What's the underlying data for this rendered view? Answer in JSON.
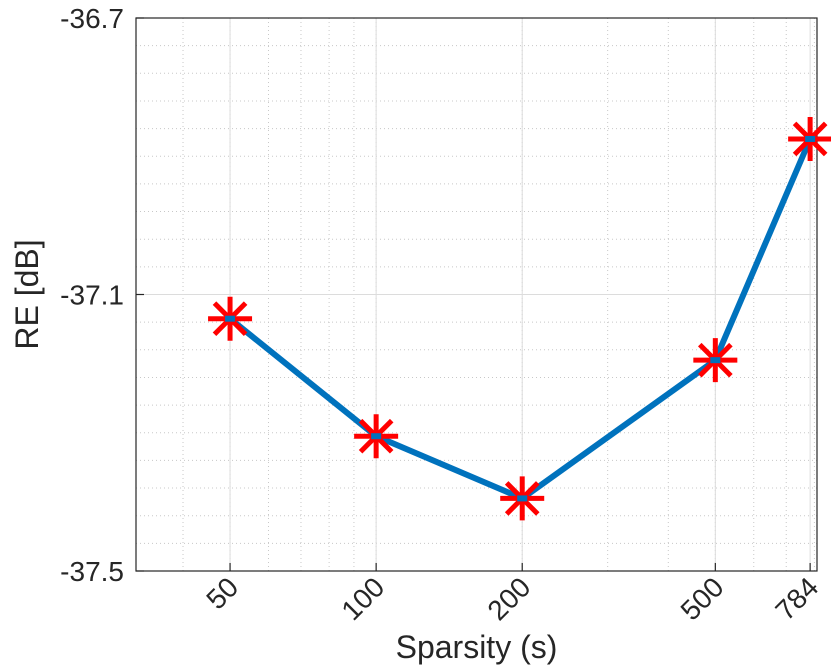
{
  "chart_data": {
    "type": "line",
    "xlabel": "Sparsity (s)",
    "ylabel": "RE [dB]",
    "x_scale": "log",
    "xlim": [
      32,
      810
    ],
    "ylim": [
      -37.5,
      -36.7
    ],
    "x_ticks": [
      50,
      100,
      200,
      500,
      784
    ],
    "x_tick_labels": [
      "50",
      "100",
      "200",
      "500",
      "784"
    ],
    "y_ticks": [
      -37.5,
      -37.1,
      -36.7
    ],
    "y_tick_labels": [
      "-37.5",
      "-37.1",
      "-36.7"
    ],
    "grid": true,
    "minor_grid": true,
    "series": [
      {
        "x": [
          50,
          100,
          200,
          500,
          784
        ],
        "y": [
          -37.135,
          -37.305,
          -37.395,
          -37.195,
          -36.875
        ],
        "line_color": "#0072bd",
        "marker": "asterisk",
        "marker_color": "#ff0000"
      }
    ]
  }
}
